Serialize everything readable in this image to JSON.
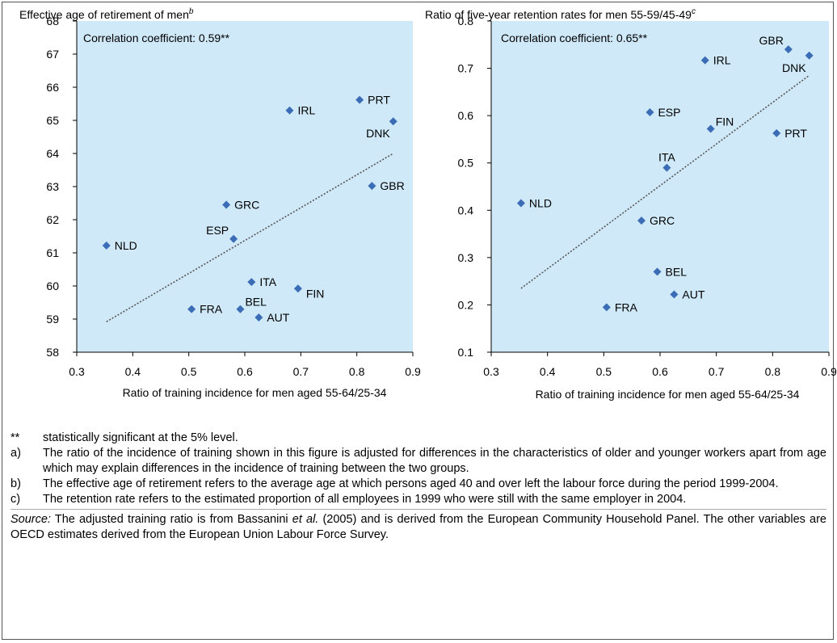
{
  "colors": {
    "plot_bg": "#cfe9f8",
    "marker": "#3a6db5",
    "trend": "#555555"
  },
  "chart_data": [
    {
      "type": "scatter",
      "title": "Effective age of retirement of men",
      "title_sup": "b",
      "xlabel": "Ratio of training incidence for men aged 55-64/25-34",
      "ylabel": "",
      "annotation": "Correlation coefficient: 0.59**",
      "xlim": [
        0.3,
        0.9
      ],
      "ylim": [
        58,
        68
      ],
      "xticks": [
        "0.3",
        "0.4",
        "0.5",
        "0.6",
        "0.7",
        "0.8",
        "0.9"
      ],
      "yticks": [
        "58",
        "59",
        "60",
        "61",
        "62",
        "63",
        "64",
        "65",
        "66",
        "67",
        "68"
      ],
      "trendline": [
        [
          0.353,
          58.92
        ],
        [
          0.865,
          64.0
        ]
      ],
      "points": [
        {
          "label": "NLD",
          "x": 0.353,
          "y": 61.22,
          "pos": "right"
        },
        {
          "label": "FRA",
          "x": 0.505,
          "y": 59.3,
          "pos": "right"
        },
        {
          "label": "GRC",
          "x": 0.567,
          "y": 62.45,
          "pos": "right"
        },
        {
          "label": "ESP",
          "x": 0.58,
          "y": 61.42,
          "pos": "left-above"
        },
        {
          "label": "BEL",
          "x": 0.592,
          "y": 59.3,
          "pos": "right-above"
        },
        {
          "label": "ITA",
          "x": 0.612,
          "y": 60.12,
          "pos": "right"
        },
        {
          "label": "AUT",
          "x": 0.625,
          "y": 59.05,
          "pos": "right"
        },
        {
          "label": "IRL",
          "x": 0.68,
          "y": 65.3,
          "pos": "right"
        },
        {
          "label": "FIN",
          "x": 0.695,
          "y": 59.92,
          "pos": "right-below"
        },
        {
          "label": "PRT",
          "x": 0.805,
          "y": 65.62,
          "pos": "right"
        },
        {
          "label": "GBR",
          "x": 0.827,
          "y": 63.02,
          "pos": "right"
        },
        {
          "label": "DNK",
          "x": 0.865,
          "y": 64.97,
          "pos": "left-below"
        }
      ]
    },
    {
      "type": "scatter",
      "title": "Ratio of five-year retention rates for men 55-59/45-49",
      "title_sup": "c",
      "xlabel": "Ratio of training incidence for men aged 55-64/25-34",
      "ylabel": "",
      "annotation": "Correlation coefficient: 0.65**",
      "xlim": [
        0.3,
        0.9
      ],
      "ylim": [
        0.1,
        0.8
      ],
      "xticks": [
        "0.3",
        "0.4",
        "0.5",
        "0.6",
        "0.7",
        "0.8",
        "0.9"
      ],
      "yticks": [
        "0.1",
        "0.2",
        "0.3",
        "0.4",
        "0.5",
        "0.6",
        "0.7",
        "0.8"
      ],
      "trendline": [
        [
          0.353,
          0.235
        ],
        [
          0.865,
          0.685
        ]
      ],
      "points": [
        {
          "label": "NLD",
          "x": 0.353,
          "y": 0.415,
          "pos": "right"
        },
        {
          "label": "FRA",
          "x": 0.505,
          "y": 0.195,
          "pos": "right"
        },
        {
          "label": "GRC",
          "x": 0.567,
          "y": 0.378,
          "pos": "right"
        },
        {
          "label": "ESP",
          "x": 0.582,
          "y": 0.607,
          "pos": "right"
        },
        {
          "label": "BEL",
          "x": 0.595,
          "y": 0.27,
          "pos": "right"
        },
        {
          "label": "ITA",
          "x": 0.612,
          "y": 0.49,
          "pos": "above"
        },
        {
          "label": "AUT",
          "x": 0.625,
          "y": 0.222,
          "pos": "right"
        },
        {
          "label": "IRL",
          "x": 0.68,
          "y": 0.717,
          "pos": "right"
        },
        {
          "label": "FIN",
          "x": 0.69,
          "y": 0.572,
          "pos": "right-above"
        },
        {
          "label": "PRT",
          "x": 0.807,
          "y": 0.563,
          "pos": "right"
        },
        {
          "label": "GBR",
          "x": 0.828,
          "y": 0.74,
          "pos": "left-above"
        },
        {
          "label": "DNK",
          "x": 0.865,
          "y": 0.727,
          "pos": "left-below"
        }
      ]
    }
  ],
  "notes": [
    {
      "key": "**",
      "text": "statistically significant at the 5% level."
    },
    {
      "key": "a)",
      "text": "The ratio of the incidence of training shown in this figure is adjusted for differences in the characteristics of older and younger workers apart from age which may explain differences in the incidence of training between the two groups."
    },
    {
      "key": "b)",
      "text": "The effective age of retirement refers to the average age at which persons aged 40 and over left the labour force during the period 1999-2004."
    },
    {
      "key": "c)",
      "text": "The retention rate refers to the estimated proportion of all employees in 1999 who were still with the same employer in 2004."
    }
  ],
  "source": {
    "label": "Source:",
    "text_1": " The adjusted training ratio is from Bassanini ",
    "et_al": "et al.",
    "text_2": " (2005) and is derived from the European Community Household Panel. The other variables are OECD estimates derived from the European Union Labour Force Survey."
  }
}
